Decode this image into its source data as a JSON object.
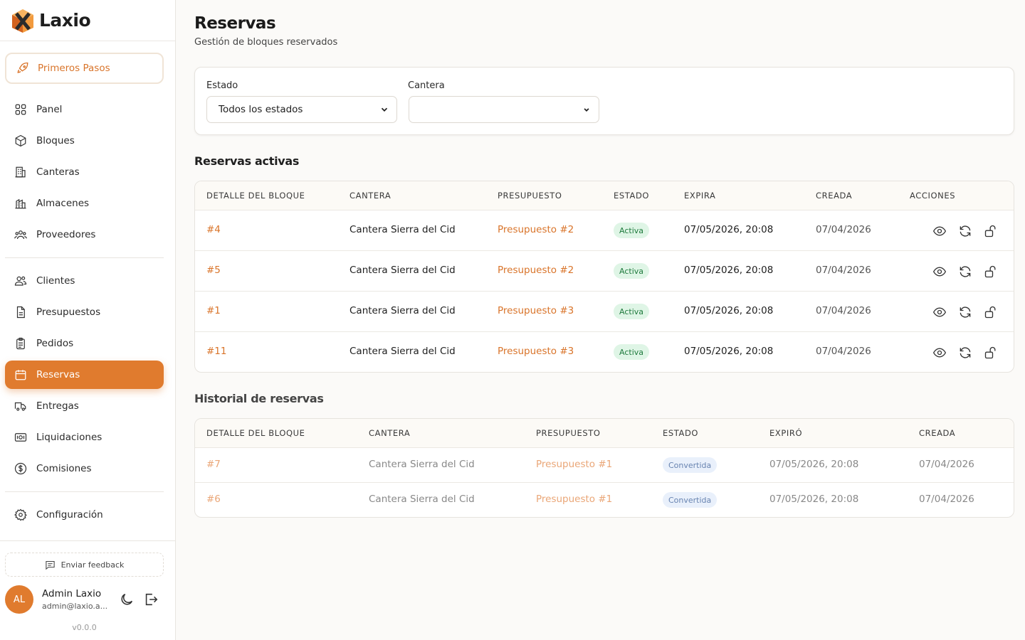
{
  "brand": {
    "name": "Laxio"
  },
  "sidebar": {
    "first_steps": "Primeros Pasos",
    "items": [
      {
        "label": "Panel",
        "icon": "grid-icon"
      },
      {
        "label": "Bloques",
        "icon": "cube-icon"
      },
      {
        "label": "Canteras",
        "icon": "building-icon"
      },
      {
        "label": "Almacenes",
        "icon": "warehouse-icon"
      },
      {
        "label": "Proveedores",
        "icon": "users-group-icon"
      },
      {
        "label": "Clientes",
        "icon": "users-icon"
      },
      {
        "label": "Presupuestos",
        "icon": "document-icon"
      },
      {
        "label": "Pedidos",
        "icon": "clipboard-icon"
      },
      {
        "label": "Reservas",
        "icon": "calendar-icon",
        "active": true
      },
      {
        "label": "Entregas",
        "icon": "truck-icon"
      },
      {
        "label": "Liquidaciones",
        "icon": "banknote-icon"
      },
      {
        "label": "Comisiones",
        "icon": "dollar-circle-icon"
      },
      {
        "label": "Configuración",
        "icon": "gear-icon"
      }
    ],
    "feedback": "Enviar feedback",
    "user": {
      "initials": "AL",
      "name": "Admin Laxio",
      "email": "admin@laxio.a..."
    },
    "version": "v0.0.0"
  },
  "page": {
    "title": "Reservas",
    "subtitle": "Gestión de bloques reservados"
  },
  "filters": {
    "estado_label": "Estado",
    "estado_value": "Todos los estados",
    "cantera_label": "Cantera",
    "cantera_value": ""
  },
  "active": {
    "title": "Reservas activas",
    "headers": [
      "DETALLE DEL BLOQUE",
      "CANTERA",
      "PRESUPUESTO",
      "ESTADO",
      "EXPIRA",
      "CREADA",
      "ACCIONES"
    ],
    "rows": [
      {
        "block": "#4",
        "cantera": "Cantera Sierra del Cid",
        "budget": "Presupuesto #2",
        "status": "Activa",
        "expires": "07/05/2026, 20:08",
        "created": "07/04/2026"
      },
      {
        "block": "#5",
        "cantera": "Cantera Sierra del Cid",
        "budget": "Presupuesto #2",
        "status": "Activa",
        "expires": "07/05/2026, 20:08",
        "created": "07/04/2026"
      },
      {
        "block": "#1",
        "cantera": "Cantera Sierra del Cid",
        "budget": "Presupuesto #3",
        "status": "Activa",
        "expires": "07/05/2026, 20:08",
        "created": "07/04/2026"
      },
      {
        "block": "#11",
        "cantera": "Cantera Sierra del Cid",
        "budget": "Presupuesto #3",
        "status": "Activa",
        "expires": "07/05/2026, 20:08",
        "created": "07/04/2026"
      }
    ]
  },
  "history": {
    "title": "Historial de reservas",
    "headers": [
      "DETALLE DEL BLOQUE",
      "CANTERA",
      "PRESUPUESTO",
      "ESTADO",
      "EXPIRÓ",
      "CREADA"
    ],
    "rows": [
      {
        "block": "#7",
        "cantera": "Cantera Sierra del Cid",
        "budget": "Presupuesto #1",
        "status": "Convertida",
        "expires": "07/05/2026, 20:08",
        "created": "07/04/2026"
      },
      {
        "block": "#6",
        "cantera": "Cantera Sierra del Cid",
        "budget": "Presupuesto #1",
        "status": "Convertida",
        "expires": "07/05/2026, 20:08",
        "created": "07/04/2026"
      }
    ]
  },
  "colors": {
    "accent": "#e07b2e",
    "active_badge": "#dff5e6",
    "converted_badge": "#e6eefb"
  }
}
